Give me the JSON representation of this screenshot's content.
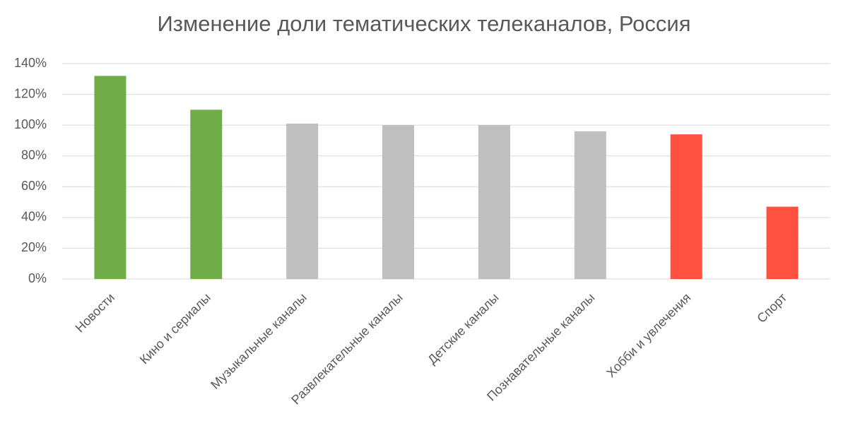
{
  "chart_data": {
    "type": "bar",
    "title": "Изменение доли тематических телеканалов, Россия",
    "categories": [
      "Новости",
      "Кино и сериалы",
      "Музыкальные каналы",
      "Развлекательные каналы",
      "Детские каналы",
      "Познавательные каналы",
      "Хобби и увлечения",
      "Спорт"
    ],
    "values": [
      132,
      110,
      101,
      100,
      100,
      96,
      94,
      47
    ],
    "colors": [
      "#70ad47",
      "#70ad47",
      "#bfbfbf",
      "#bfbfbf",
      "#bfbfbf",
      "#bfbfbf",
      "#ff5040",
      "#ff5040"
    ],
    "ylim": [
      0,
      140
    ],
    "yticks": [
      {
        "value": 0,
        "label": "0%"
      },
      {
        "value": 20,
        "label": "20%"
      },
      {
        "value": 40,
        "label": "40%"
      },
      {
        "value": 60,
        "label": "60%"
      },
      {
        "value": 80,
        "label": "80%"
      },
      {
        "value": 100,
        "label": "100%"
      },
      {
        "value": 120,
        "label": "120%"
      },
      {
        "value": 140,
        "label": "140%"
      }
    ],
    "grid": true
  }
}
